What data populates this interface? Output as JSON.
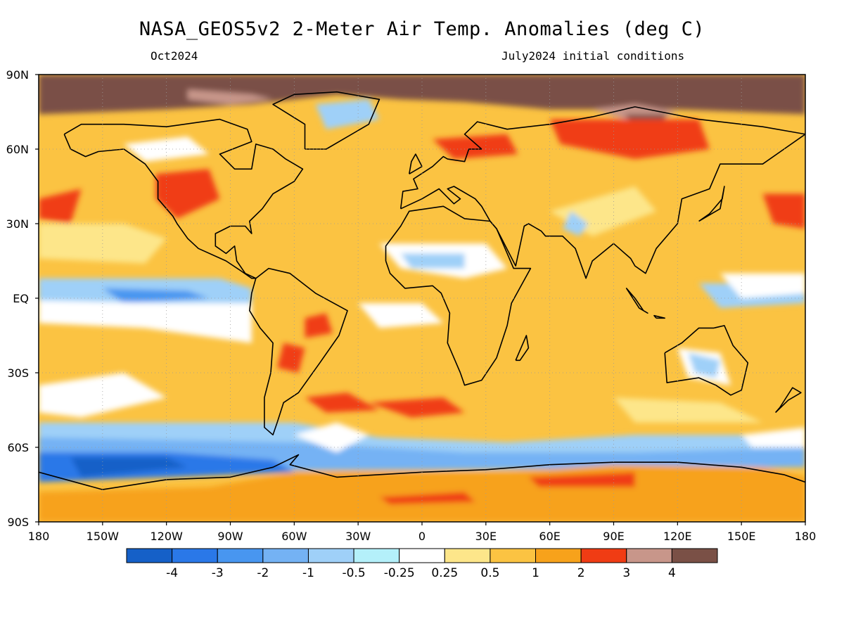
{
  "title": "NASA_GEOS5v2 2-Meter Air Temp. Anomalies (deg C)",
  "subtitle_left": "Oct2024",
  "subtitle_right": "July2024 initial conditions",
  "lat_ticks": [
    "90N",
    "60N",
    "30N",
    "EQ",
    "30S",
    "60S",
    "90S"
  ],
  "lon_ticks": [
    "180",
    "150W",
    "120W",
    "90W",
    "60W",
    "30W",
    "0",
    "30E",
    "60E",
    "90E",
    "120E",
    "150E",
    "180"
  ],
  "colorbar": {
    "colors": [
      "#1560c8",
      "#2a78e8",
      "#4896f0",
      "#74b2f4",
      "#9fd0f8",
      "#b4f0fa",
      "#ffffff",
      "#fde68a",
      "#fbc342",
      "#f7a21b",
      "#f03c14",
      "#c8968a",
      "#7a5046"
    ],
    "labels": [
      "-4",
      "-3",
      "-2",
      "-1",
      "-0.5",
      "-0.25",
      "0.25",
      "0.5",
      "1",
      "2",
      "3",
      "4"
    ]
  },
  "map_colors": {
    "ocean_base": "#fbc342",
    "warm": "#f7a21b",
    "light_warm": "#fde68a",
    "neutral": "#ffffff",
    "very_light_cool": "#b4f0fa",
    "light_cool": "#9fd0f8",
    "cool": "#74b2f4",
    "mid_cool": "#4896f0",
    "deep_cool": "#2a78e8",
    "darkest_cool": "#1560c8",
    "hot": "#f03c14",
    "very_hot": "#c8968a",
    "extreme": "#7a5046",
    "coast": "#000000"
  }
}
